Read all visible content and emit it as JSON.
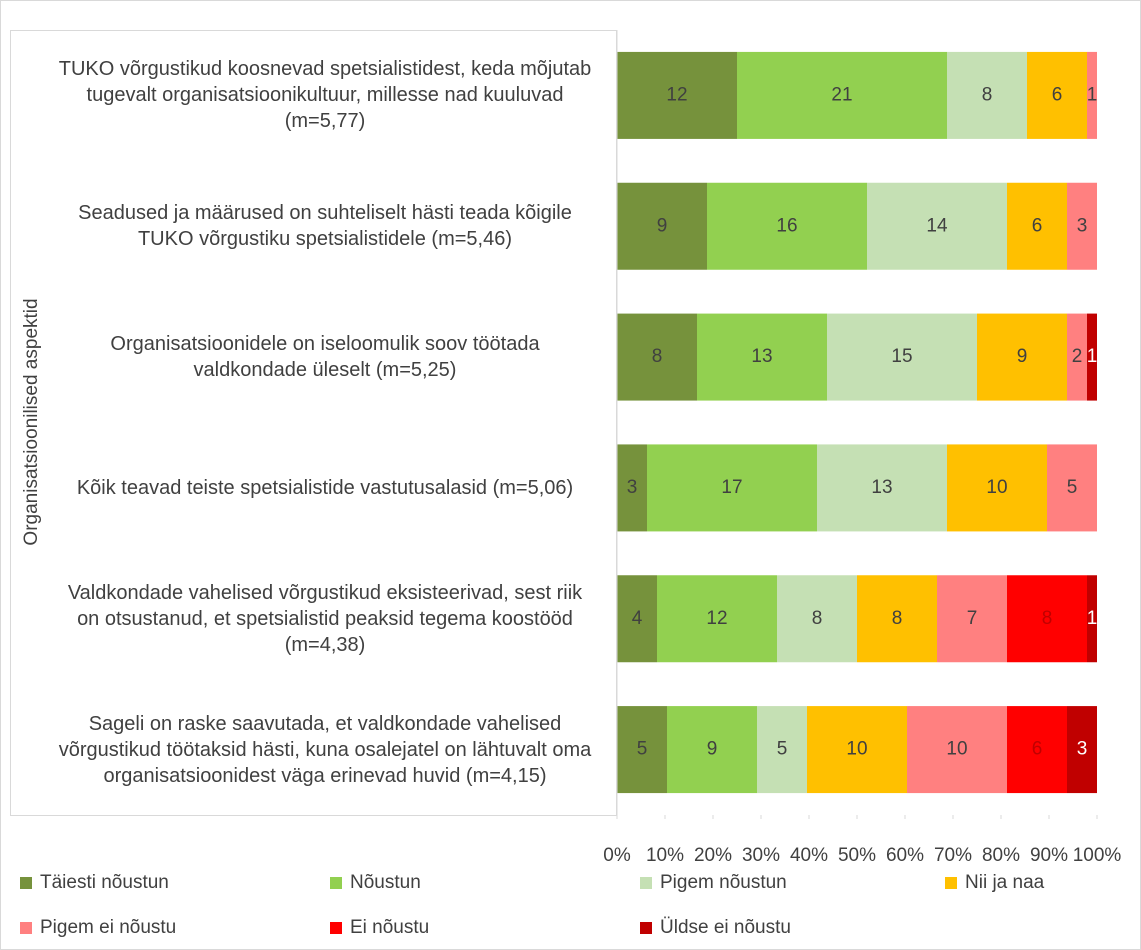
{
  "chart_data": {
    "type": "stacked-bar-100",
    "y_label": "Organisatsioonilised aspektid",
    "categories": [
      "TUKO võrgustikud koosnevad spetsialistidest, keda mõjutab tugevalt organisatsioonikultuur, millesse nad kuuluvad (m=5,77)",
      "Seadused ja määrused on suhteliselt hästi teada kõigile TUKO võrgustiku spetsialistidele (m=5,46)",
      "Organisatsioonidele on iseloomulik soov töötada valdkondade üleselt (m=5,25)",
      "Kõik teavad teiste spetsialistide vastutusalasid (m=5,06)",
      "Valdkondade vahelised võrgustikud eksisteerivad, sest riik on otsustanud, et spetsialistid peaksid tegema koostööd (m=4,38)",
      "Sageli on raske saavutada, et valdkondade vahelised võrgustikud töötaksid hästi, kuna osalejatel on lähtuvalt oma organisatsioonidest väga erinevad huvid (m=4,15)"
    ],
    "series": [
      {
        "name": "Täiesti nõustun",
        "color": "#76923c",
        "values": [
          12,
          9,
          8,
          3,
          4,
          5
        ]
      },
      {
        "name": "Nõustun",
        "color": "#92d050",
        "values": [
          21,
          16,
          13,
          17,
          12,
          9
        ]
      },
      {
        "name": "Pigem nõustun",
        "color": "#c5e0b4",
        "values": [
          8,
          14,
          15,
          13,
          8,
          5
        ]
      },
      {
        "name": "Nii ja naa",
        "color": "#ffc000",
        "values": [
          6,
          6,
          9,
          10,
          8,
          10
        ]
      },
      {
        "name": "Pigem ei nõustu",
        "color": "#ff8080",
        "values": [
          1,
          3,
          2,
          5,
          7,
          10
        ]
      },
      {
        "name": "Ei nõustu",
        "color": "#ff0000",
        "values": [
          null,
          null,
          null,
          null,
          8,
          6
        ]
      },
      {
        "name": "Üldse ei nõustu",
        "color": "#c00000",
        "values": [
          null,
          null,
          1,
          null,
          1,
          3
        ]
      }
    ],
    "xlim": [
      0,
      100
    ],
    "xticks": [
      {
        "value": 0,
        "label": "0%"
      },
      {
        "value": 10,
        "label": "10%"
      },
      {
        "value": 20,
        "label": "20%"
      },
      {
        "value": 30,
        "label": "30%"
      },
      {
        "value": 40,
        "label": "40%"
      },
      {
        "value": 50,
        "label": "50%"
      },
      {
        "value": 60,
        "label": "60%"
      },
      {
        "value": 70,
        "label": "70%"
      },
      {
        "value": 80,
        "label": "80%"
      },
      {
        "value": 90,
        "label": "90%"
      },
      {
        "value": 100,
        "label": "100%"
      }
    ],
    "legend": "bottom"
  }
}
